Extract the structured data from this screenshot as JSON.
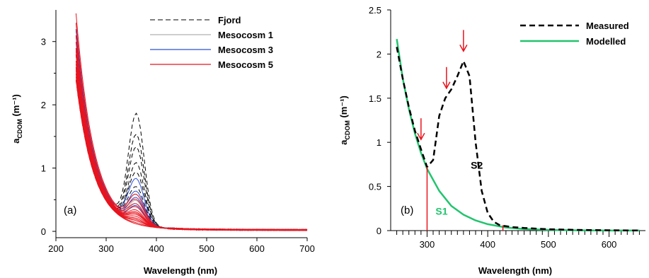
{
  "chart_data": [
    {
      "type": "line",
      "panel_label": "(a)",
      "xlabel": "Wavelength (nm)",
      "ylabel_main": "a",
      "ylabel_sub": "CDOM",
      "ylabel_unit": "(m⁻¹)",
      "xlim": [
        200,
        700
      ],
      "ylim": [
        -0.1,
        3.5
      ],
      "xticks": [
        200,
        300,
        400,
        500,
        600,
        700
      ],
      "yticks": [
        0,
        1,
        2,
        3
      ],
      "legend_position": "top-right",
      "colors": {
        "fjord": "#000000",
        "m1": "#b0b0b0",
        "m3": "#2b50d8",
        "m5": "#e8141e"
      },
      "series": [
        {
          "name": "Fjord",
          "style": "dashed",
          "color": "#000000",
          "peak_heights_at_360nm": [
            1.88,
            1.55,
            1.35,
            1.1,
            0.95,
            0.72
          ],
          "start_values_at_240nm": [
            3.1,
            2.8,
            2.6,
            2.4,
            2.9,
            3.2
          ]
        },
        {
          "name": "Mesocosm 1",
          "style": "solid",
          "color": "#b0b0b0",
          "peak_heights_at_360nm": [
            0.6,
            0.5,
            0.45
          ],
          "start_values_at_240nm": [
            3.0,
            2.7,
            2.5
          ]
        },
        {
          "name": "Mesocosm 3",
          "style": "solid",
          "color": "#2b50d8",
          "peak_heights_at_360nm": [
            0.85,
            0.65,
            0.55,
            0.42
          ],
          "start_values_at_240nm": [
            3.2,
            2.9,
            2.8,
            2.6
          ]
        },
        {
          "name": "Mesocosm 5",
          "style": "solid",
          "color": "#e8141e",
          "peak_heights_at_360nm": [
            0.6,
            0.52,
            0.45,
            0.4,
            0.35,
            0.32,
            0.3,
            0.28,
            0.25,
            0.22,
            0.2,
            0.18,
            0.15,
            0.12
          ],
          "start_values_at_240nm": [
            3.45,
            3.3,
            3.1,
            3.0,
            2.9,
            2.85,
            2.8,
            2.7,
            2.65,
            2.6,
            2.55,
            2.5,
            2.45,
            2.4
          ]
        }
      ]
    },
    {
      "type": "line",
      "panel_label": "(b)",
      "xlabel": "Wavelength (nm)",
      "ylabel_main": "a",
      "ylabel_sub": "CDOM",
      "ylabel_unit": "(m⁻¹)",
      "xlim": [
        240,
        660
      ],
      "ylim": [
        0,
        2.5
      ],
      "xticks": [
        300,
        400,
        500,
        600
      ],
      "yticks": [
        0,
        0.5,
        1,
        1.5,
        2,
        2.5
      ],
      "ytick_labels": [
        "0",
        "0.5",
        "1",
        "1.5",
        "2",
        "2.5"
      ],
      "legend_position": "top-right",
      "series": [
        {
          "name": "Measured",
          "style": "dashed",
          "color": "#000000",
          "x": [
            250,
            260,
            270,
            280,
            290,
            300,
            310,
            320,
            330,
            340,
            350,
            360,
            370,
            380,
            390,
            400,
            410,
            420,
            440,
            460,
            500,
            550,
            600,
            650
          ],
          "y": [
            2.08,
            1.72,
            1.4,
            1.13,
            0.92,
            0.72,
            0.8,
            1.3,
            1.5,
            1.6,
            1.75,
            1.92,
            1.75,
            1.0,
            0.45,
            0.2,
            0.1,
            0.06,
            0.04,
            0.03,
            0.015,
            0.008,
            0.004,
            0.002
          ]
        },
        {
          "name": "Modelled",
          "style": "solid",
          "color": "#22c46e",
          "x": [
            250,
            260,
            270,
            280,
            290,
            300,
            320,
            340,
            360,
            380,
            400,
            430,
            460,
            500,
            550,
            600,
            650
          ],
          "y": [
            2.17,
            1.72,
            1.38,
            1.1,
            0.88,
            0.7,
            0.45,
            0.28,
            0.18,
            0.115,
            0.073,
            0.035,
            0.018,
            0.008,
            0.003,
            0.001,
            0.0005
          ]
        }
      ],
      "arrows_at_wavelength": [
        {
          "x": 290,
          "y": 0.92
        },
        {
          "x": 332,
          "y": 1.5
        },
        {
          "x": 360,
          "y": 1.92
        }
      ],
      "vertical_markers_at_wavelength": [
        {
          "x": 300,
          "y": 0.72
        },
        {
          "x": 425,
          "y": 0.06
        }
      ],
      "annotations": [
        {
          "text": "S1",
          "x": 314,
          "y": 0.18,
          "color": "#22c46e"
        },
        {
          "text": "S2",
          "x": 372,
          "y": 0.7,
          "color": "#000000"
        }
      ]
    }
  ]
}
